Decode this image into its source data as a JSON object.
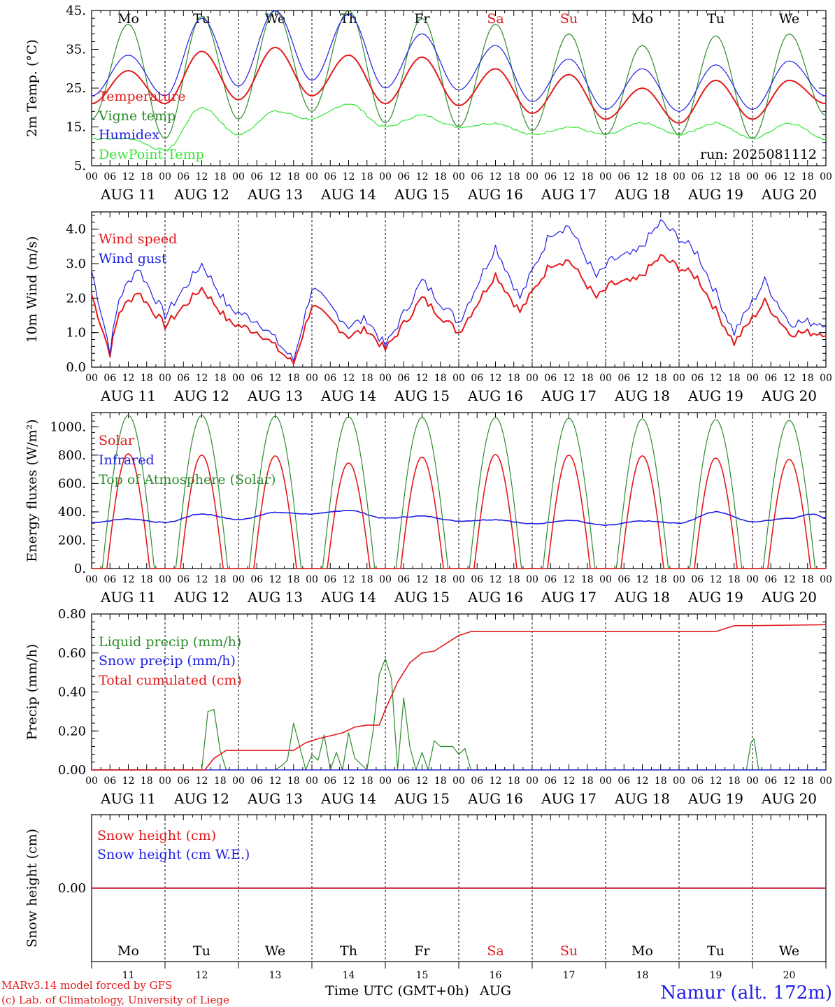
{
  "days": [
    "11",
    "12",
    "13",
    "14",
    "15",
    "16",
    "17",
    "18",
    "19",
    "20"
  ],
  "month": "AUG",
  "day_names": [
    {
      "label": "Mo",
      "color": "#000000"
    },
    {
      "label": "Tu",
      "color": "#000000"
    },
    {
      "label": "We",
      "color": "#000000"
    },
    {
      "label": "Th",
      "color": "#000000"
    },
    {
      "label": "Fr",
      "color": "#000000"
    },
    {
      "label": "Sa",
      "color": "#e41a1c"
    },
    {
      "label": "Su",
      "color": "#e41a1c"
    },
    {
      "label": "Mo",
      "color": "#000000"
    },
    {
      "label": "Tu",
      "color": "#000000"
    },
    {
      "label": "We",
      "color": "#000000"
    }
  ],
  "hour_ticks": [
    "00",
    "06",
    "12",
    "18"
  ],
  "footer": {
    "xlabel": "Time UTC (GMT+0h)",
    "month": "AUG",
    "model": "MARv3.14 model forced by GFS",
    "credit": "(c) Lab. of Climatology, University of Liege",
    "station": "Namur (alt. 172m)"
  },
  "colors": {
    "red": "#e41a1c",
    "darkgreen": "#2e8b2e",
    "blue": "#1f1fe6",
    "lightgreen": "#33e633"
  },
  "chart_data": [
    {
      "type": "line",
      "ylabel": "2m Temp. (°C)",
      "ylim": [
        5,
        45
      ],
      "yticks": [
        5,
        15,
        25,
        35,
        45
      ],
      "ytick_labels": [
        "5.",
        "15.",
        "25.",
        "35.",
        "45."
      ],
      "annotation": "run: 2025081112",
      "x_hours": [
        0,
        12,
        24,
        36,
        48,
        60,
        72,
        84,
        96,
        108,
        120,
        132,
        144,
        156,
        168,
        180,
        192,
        204,
        216,
        228,
        240
      ],
      "series": [
        {
          "name": "Temperature",
          "color": "#e41a1c",
          "values": [
            21,
            29.5,
            21,
            34.5,
            22,
            35.5,
            23,
            33.5,
            21,
            33,
            20.5,
            30,
            18.5,
            28.5,
            17,
            25,
            16,
            27,
            17,
            27,
            21
          ]
        },
        {
          "name": "Vigne temp",
          "color": "#2e8b2e",
          "values": [
            17,
            41.5,
            12,
            43.5,
            17,
            45,
            19,
            45,
            16,
            43,
            15,
            41.5,
            14,
            39,
            13,
            36,
            13,
            38.5,
            12,
            39,
            18
          ]
        },
        {
          "name": "Humidex",
          "color": "#1f1fe6",
          "values": [
            23,
            33.5,
            23,
            43,
            25.5,
            45,
            27,
            44,
            25,
            39,
            24.5,
            36,
            21.5,
            32.5,
            19.5,
            30,
            19,
            31,
            19.5,
            32,
            23
          ]
        },
        {
          "name": "DewPoint Temp",
          "color": "#33e633",
          "values": [
            12,
            12,
            9,
            20,
            13,
            19,
            17,
            21,
            15,
            18,
            15,
            16,
            13,
            15,
            13,
            16,
            13,
            16,
            12,
            16,
            12
          ]
        }
      ]
    },
    {
      "type": "line",
      "ylabel": "10m Wind (m/s)",
      "ylim": [
        0,
        4.5
      ],
      "yticks": [
        0,
        1,
        2,
        3,
        4
      ],
      "ytick_labels": [
        "0.0",
        "1.0",
        "2.0",
        "3.0",
        "4.0"
      ],
      "x_hours": [
        0,
        6,
        9,
        15,
        24,
        36,
        45,
        55,
        66,
        72,
        84,
        90,
        96,
        108,
        120,
        132,
        140,
        150,
        156,
        165,
        170,
        178,
        186,
        198,
        210,
        220,
        228,
        240
      ],
      "series": [
        {
          "name": "Wind speed",
          "color": "#e41a1c",
          "values": [
            2.1,
            0.4,
            1.6,
            2.2,
            1.2,
            2.3,
            1.3,
            1.0,
            0.1,
            1.8,
            0.9,
            1.1,
            0.5,
            2.0,
            1.0,
            2.7,
            1.6,
            3.0,
            3.1,
            2.0,
            2.4,
            2.5,
            3.2,
            2.6,
            0.7,
            1.9,
            1.0,
            1.0
          ]
        },
        {
          "name": "Wind gust",
          "color": "#1f1fe6",
          "values": [
            2.8,
            0.5,
            2.0,
            2.9,
            1.5,
            3.0,
            1.7,
            1.3,
            0.2,
            2.3,
            1.2,
            1.4,
            0.6,
            2.5,
            1.3,
            3.5,
            2.0,
            3.9,
            4.1,
            2.6,
            3.1,
            3.3,
            4.2,
            3.3,
            1.0,
            2.5,
            1.3,
            1.3
          ]
        }
      ]
    },
    {
      "type": "line",
      "ylabel": "Energy fluxes (W/m²)",
      "ylim": [
        0,
        1100
      ],
      "yticks": [
        0,
        200,
        400,
        600,
        800,
        1000
      ],
      "ytick_labels": [
        "0.",
        "200.",
        "400.",
        "600.",
        "800.",
        "1000."
      ],
      "series": [
        {
          "name": "Solar",
          "color": "#e41a1c",
          "daily_peak": [
            810,
            800,
            795,
            745,
            785,
            805,
            800,
            795,
            780,
            770
          ]
        },
        {
          "name": "Infrared",
          "color": "#1f1fe6",
          "x_hours": [
            0,
            12,
            24,
            36,
            48,
            60,
            72,
            84,
            96,
            108,
            120,
            132,
            144,
            156,
            168,
            180,
            192,
            204,
            216,
            228,
            236,
            240
          ],
          "values": [
            325,
            350,
            325,
            385,
            345,
            395,
            385,
            410,
            355,
            370,
            335,
            345,
            315,
            340,
            305,
            335,
            320,
            400,
            330,
            355,
            385,
            355
          ]
        },
        {
          "name": "Top of Atmosphere (Solar)",
          "color": "#2e8b2e",
          "daily_peak": [
            1080,
            1080,
            1075,
            1070,
            1065,
            1065,
            1060,
            1055,
            1050,
            1045
          ]
        }
      ]
    },
    {
      "type": "line",
      "ylabel": "Precip (mm/h)",
      "ylim": [
        0,
        0.8
      ],
      "yticks": [
        0,
        0.2,
        0.4,
        0.6,
        0.8
      ],
      "ytick_labels": [
        "0.00",
        "0.20",
        "0.40",
        "0.60",
        "0.80"
      ],
      "series": [
        {
          "name": "Liquid precip (mm/h)",
          "color": "#2e8b2e",
          "x_hours": [
            0,
            36,
            38,
            40,
            42,
            44,
            58,
            60,
            62,
            64,
            66,
            68,
            70,
            72,
            74,
            76,
            78,
            80,
            82,
            84,
            86,
            90,
            92,
            94,
            96,
            98,
            100,
            102,
            104,
            106,
            108,
            110,
            112,
            114,
            116,
            118,
            120,
            122,
            124,
            130,
            134,
            136,
            138,
            140,
            240
          ],
          "values": [
            0,
            0,
            0.3,
            0.31,
            0.1,
            0,
            0,
            0,
            0.02,
            0.05,
            0.24,
            0.12,
            0,
            0.08,
            0.05,
            0.18,
            0,
            0.09,
            0,
            0.19,
            0.06,
            0,
            0.2,
            0.49,
            0.57,
            0.47,
            0,
            0.37,
            0.12,
            0,
            0.09,
            0,
            0.15,
            0.12,
            0.12,
            0.12,
            0.08,
            0.11,
            0,
            0,
            0,
            0,
            0,
            0,
            0
          ]
        },
        {
          "name": "Snow precip (mm/h)",
          "color": "#1f1fe6",
          "x_hours": [
            0,
            240
          ],
          "values": [
            0,
            0
          ]
        },
        {
          "name": "Total cumulated (cm)",
          "color": "#e41a1c",
          "x_hours": [
            0,
            37,
            40,
            44,
            66,
            70,
            74,
            82,
            86,
            90,
            94,
            96,
            100,
            104,
            108,
            112,
            116,
            120,
            124,
            136,
            150,
            168,
            204,
            210,
            216,
            240
          ],
          "values": [
            0,
            0,
            0.06,
            0.1,
            0.1,
            0.14,
            0.16,
            0.19,
            0.22,
            0.23,
            0.23,
            0.31,
            0.45,
            0.55,
            0.6,
            0.61,
            0.65,
            0.69,
            0.71,
            0.71,
            0.71,
            0.71,
            0.71,
            0.74,
            0.74,
            0.745
          ]
        }
      ]
    },
    {
      "type": "line",
      "ylabel": "Snow height (cm)",
      "ylim": [
        -1,
        1
      ],
      "yticks": [
        0
      ],
      "ytick_labels": [
        "0.00"
      ],
      "series": [
        {
          "name": "Snow height (cm)",
          "color": "#e41a1c",
          "x_hours": [
            0,
            240
          ],
          "values": [
            0,
            0
          ]
        },
        {
          "name": "Snow height (cm W.E.)",
          "color": "#1f1fe6",
          "x_hours": [
            0,
            240
          ],
          "values": [
            0,
            0
          ]
        }
      ]
    }
  ]
}
